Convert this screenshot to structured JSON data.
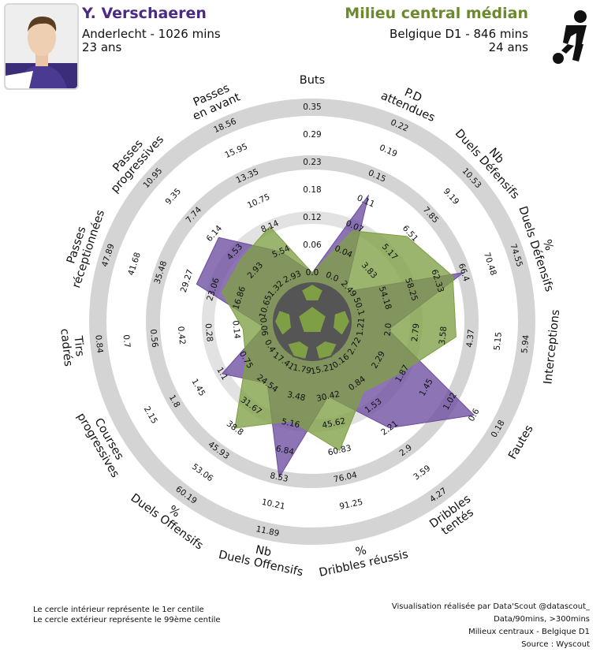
{
  "header": {
    "player_name": "Y. Verschaeren",
    "player_club": "Anderlecht - 1026 mins",
    "player_age": "23 ans",
    "compare_name": "Milieu central médian",
    "compare_league": "Belgique D1 - 846 mins",
    "compare_age": "24 ans"
  },
  "footer": {
    "inner_note": "Le cercle intérieur représente le 1er centile",
    "outer_note": "Le cercle extérieur représente le 99ème centile",
    "credit_1": "Visualisation réalisée par Data'Scout @datascout_",
    "credit_2": "Data/90mins, >300mins",
    "credit_3": "Milieux centraux - Belgique D1",
    "credit_4": "Source : Wyscout"
  },
  "colors": {
    "player": "#6c4da0",
    "average": "#7f9f45",
    "player_title": "#4b2a86",
    "average_title": "#6a8a2c",
    "rings": "#d4d4d4"
  },
  "icons": {
    "center": "football-icon",
    "corner": "player-kicking-icon",
    "photo": "player-photo"
  },
  "chart_data": {
    "type": "radar",
    "axes": [
      {
        "label": [
          "Buts"
        ],
        "ticks": [
          "0.0",
          "0.06",
          "0.12",
          "0.18",
          "0.23",
          "0.29",
          "0.35"
        ],
        "player": 0.0,
        "average": 0.0
      },
      {
        "label": [
          "P.D",
          "attendues"
        ],
        "ticks": [
          "0.0",
          "0.04",
          "0.07",
          "0.11",
          "0.15",
          "0.19",
          "0.22"
        ],
        "player": 0.12,
        "average": 0.065
      },
      {
        "label": [
          "Nb",
          "Duels Défensifs"
        ],
        "ticks": [
          "2.49",
          "3.83",
          "5.17",
          "6.51",
          "7.85",
          "9.19",
          "10.53"
        ],
        "player": 2.3,
        "average": 6.3
      },
      {
        "label": [
          "%",
          "Duels Défensifs"
        ],
        "ticks": [
          "50.1",
          "54.18",
          "58.25",
          "62.33",
          "66.4",
          "70.48",
          "74.55"
        ],
        "player": 66.4,
        "average": 64.7
      },
      {
        "label": [
          "Interceptions"
        ],
        "ticks": [
          "1.21",
          "2.0",
          "2.79",
          "3.58",
          "4.37",
          "5.15",
          "5.94"
        ],
        "player": 2.0,
        "average": 3.95
      },
      {
        "label": [
          "Fautes"
        ],
        "ticks": [
          "2.72",
          "2.29",
          "1.87",
          "1.45",
          "1.02",
          "0.6",
          "0.18"
        ],
        "player": 0.6,
        "average": 1.9
      },
      {
        "label": [
          "Dribbles",
          "tentés"
        ],
        "ticks": [
          "0.16",
          "0.84",
          "1.53",
          "2.21",
          "2.9",
          "3.59",
          "4.27"
        ],
        "player": 2.2,
        "average": 1.1
      },
      {
        "label": [
          "%",
          "Dribbles réussis"
        ],
        "ticks": [
          "15.21",
          "30.42",
          "45.62",
          "60.83",
          "76.04",
          "91.25"
        ],
        "player": 30.4,
        "average": 60.8
      },
      {
        "label": [
          "Nb",
          "Duels Offensifs"
        ],
        "ticks": [
          "1.79",
          "3.48",
          "5.16",
          "6.84",
          "8.53",
          "10.21",
          "11.89"
        ],
        "player": 8.53,
        "average": 5.0
      },
      {
        "label": [
          "%",
          "Duels Offensifs"
        ],
        "ticks": [
          "17.41",
          "24.54",
          "31.67",
          "38.8",
          "45.93",
          "53.06",
          "60.19"
        ],
        "player": 24.5,
        "average": 38.8
      },
      {
        "label": [
          "Courses",
          "progressives"
        ],
        "ticks": [
          "0.4",
          "0.75",
          "1.1",
          "1.45",
          "1.8",
          "2.15"
        ],
        "player": 1.1,
        "average": 0.75
      },
      {
        "label": [
          "Tirs",
          "cadrés"
        ],
        "ticks": [
          "0.06",
          "0.14",
          "0.28",
          "0.42",
          "0.56",
          "0.7",
          "0.84"
        ],
        "player": 0.06,
        "average": 0.12
      },
      {
        "label": [
          "Passes",
          "réceptionnées"
        ],
        "ticks": [
          "10.65",
          "16.86",
          "23.06",
          "29.27",
          "35.48",
          "41.68",
          "47.89"
        ],
        "player": 27.0,
        "average": 21.0
      },
      {
        "label": [
          "Passes",
          "progressives"
        ],
        "ticks": [
          "1.32",
          "2.93",
          "4.53",
          "6.14",
          "7.74",
          "9.35",
          "10.95"
        ],
        "player": 5.8,
        "average": 4.0
      },
      {
        "label": [
          "Passes",
          "en avant"
        ],
        "ticks": [
          "2.93",
          "5.54",
          "8.14",
          "10.75",
          "13.35",
          "15.95",
          "18.56"
        ],
        "player": 5.54,
        "average": 8.14
      }
    ]
  }
}
